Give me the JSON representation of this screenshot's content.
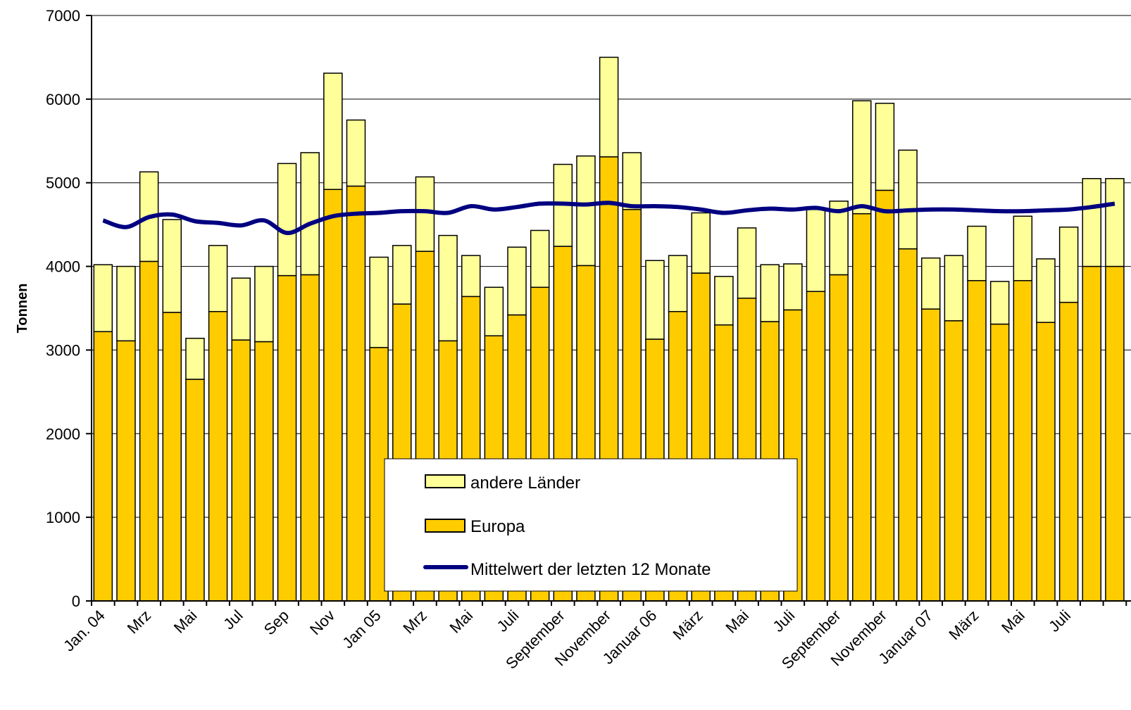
{
  "chart_data": {
    "type": "bar",
    "stacked": true,
    "title": "",
    "xlabel": "",
    "ylabel": "Tonnen",
    "ylim": [
      0,
      7000
    ],
    "yticks": [
      0,
      1000,
      2000,
      3000,
      4000,
      5000,
      6000,
      7000
    ],
    "grid": "horizontal",
    "legend_position": "bottom-center",
    "x_tick_labels": [
      "Jan. 04",
      "Mrz",
      "Mai",
      "Jul",
      "Sep",
      "Nov",
      "Jan 05",
      "Mrz",
      "Mai",
      "Juli",
      "September",
      "November",
      "Januar 06",
      "März",
      "Mai",
      "Juli",
      "September",
      "November",
      "Januar 07",
      "März",
      "Mai",
      "Juli"
    ],
    "x_tick_every": 2,
    "bar_count": 45,
    "series": [
      {
        "name": "Europa",
        "kind": "bar",
        "color": "#FFCC00",
        "values": [
          3220,
          3110,
          4060,
          3450,
          2650,
          3460,
          3120,
          3100,
          3890,
          3900,
          4920,
          4960,
          3030,
          3550,
          4180,
          3110,
          3640,
          3170,
          3420,
          3750,
          4240,
          4010,
          5310,
          4680,
          3130,
          3460,
          3920,
          3300,
          3620,
          3340,
          3480,
          3700,
          3900,
          4630,
          4910,
          4210,
          3490,
          3350,
          3830,
          3310,
          3830,
          3330,
          3570,
          4000,
          4000
        ]
      },
      {
        "name": "andere Länder",
        "kind": "bar",
        "color": "#FFFF99",
        "values": [
          800,
          890,
          1070,
          1110,
          490,
          790,
          740,
          900,
          1340,
          1460,
          1390,
          790,
          1080,
          700,
          890,
          1260,
          490,
          580,
          810,
          680,
          980,
          1310,
          1190,
          680,
          940,
          670,
          720,
          580,
          840,
          680,
          550,
          980,
          880,
          1350,
          1040,
          1180,
          610,
          780,
          650,
          510,
          770,
          760,
          900,
          1050,
          1050
        ]
      },
      {
        "name": "Mittelwert der letzten 12 Monate",
        "kind": "line",
        "color": "#000080",
        "values": [
          4550,
          4470,
          4590,
          4620,
          4540,
          4520,
          4490,
          4550,
          4400,
          4510,
          4600,
          4630,
          4640,
          4660,
          4660,
          4640,
          4720,
          4680,
          4710,
          4750,
          4750,
          4740,
          4760,
          4720,
          4720,
          4710,
          4680,
          4640,
          4670,
          4690,
          4680,
          4700,
          4660,
          4720,
          4660,
          4670,
          4680,
          4680,
          4670,
          4660,
          4660,
          4670,
          4680,
          4710,
          4750
        ]
      }
    ]
  }
}
